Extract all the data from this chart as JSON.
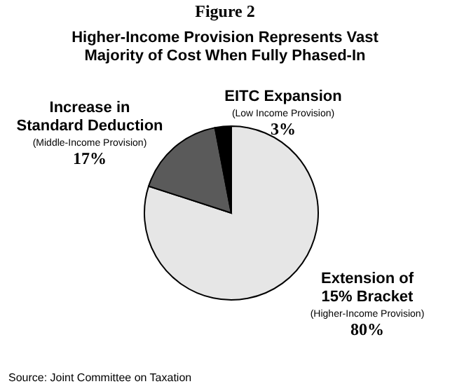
{
  "chart_data": {
    "type": "pie",
    "title": "Figure 2",
    "subtitle": "Higher-Income Provision Represents Vast Majority of Cost When Fully Phased-In",
    "categories": [
      "Extension of 15% Bracket",
      "Increase in Standard Deduction",
      "EITC Expansion"
    ],
    "values": [
      80,
      17,
      3
    ],
    "colors": [
      "#e6e6e6",
      "#5a5a5a",
      "#000000"
    ],
    "value_labels": [
      "80%",
      "17%",
      "3%"
    ],
    "annotations": [
      "(Higher-Income Provision)",
      "(Middle-Income Provision)",
      "(Low Income Provision)",
      "Source: Joint Committee on Taxation"
    ]
  }
}
